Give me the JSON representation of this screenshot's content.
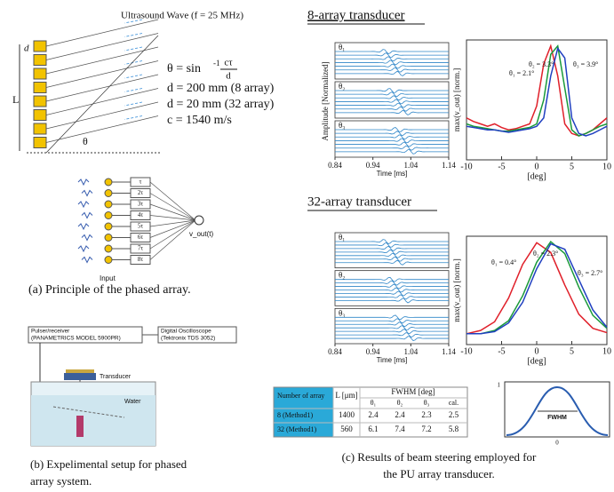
{
  "panel_a": {
    "title": "Ultrasound Wave (f = 25 MHz)",
    "symbol_L": "L",
    "symbol_d": "d",
    "symbol_theta": "θ",
    "equation": {
      "lhs": "θ = sin",
      "exp": "-1",
      "num": "cτ",
      "den": "d"
    },
    "params": [
      "d = 200 mm (8 array)",
      "d = 20 mm (32 array)",
      "c = 1540 m/s"
    ],
    "delays": [
      "τ",
      "2τ",
      "3τ",
      "4τ",
      "5τ",
      "6τ",
      "7τ",
      "8τ"
    ],
    "output": "v_out(t)",
    "input": "Input",
    "caption": "(a) Principle of the phased array."
  },
  "panel_b": {
    "pulser": [
      "Pulser/receiver",
      "(PANAMETRICS MODEL 5900PR)"
    ],
    "scope": [
      "Digital Oscilloscope",
      "(Tektronix TDS 3052)"
    ],
    "transducer": "Transducer",
    "water": "Water",
    "caption": [
      "(b) Expelimental setup for phased",
      "array system."
    ]
  },
  "panel_c": {
    "title_8": "8-array transducer",
    "title_32": "32-array transducer",
    "table": {
      "header": [
        "Number of array",
        "L [μm]",
        "FWHM [deg]"
      ],
      "subheader": [
        "θ₁",
        "θ₂",
        "θ₃",
        "cal."
      ],
      "rows": [
        [
          "8 (Method1)",
          "1400",
          "2.4",
          "2.4",
          "2.3",
          "2.5"
        ],
        [
          "32 (Method1)",
          "560",
          "6.1",
          "7.4",
          "7.2",
          "5.8"
        ]
      ]
    },
    "inset": {
      "label": "FWHM",
      "y_top": "1",
      "x_mid": "0"
    },
    "caption": [
      "(c) Results of beam steering employed for",
      "the PU array transducer."
    ]
  },
  "chart_data": [
    {
      "type": "waveform",
      "ylabel": "Amplitude [Normalized]",
      "xlabel": "Time [ms]",
      "xlim": [
        0.84,
        1.14
      ],
      "xticks": [
        0.84,
        0.94,
        1.04,
        1.14
      ],
      "channels": [
        "θ₁",
        "θ₂",
        "θ₃"
      ]
    },
    {
      "type": "line",
      "ylabel": "max(v_out) [norm.]",
      "xlabel": "[deg]",
      "xlim": [
        -10,
        10
      ],
      "xticks": [
        -10,
        -5,
        0,
        5,
        10
      ],
      "ylim": [
        0,
        1
      ],
      "x": [
        -10,
        -9,
        -8,
        -7,
        -6,
        -5,
        -4,
        -3,
        -2,
        -1,
        0,
        1,
        2,
        3,
        4,
        5,
        6,
        7,
        8,
        9,
        10
      ],
      "series": [
        {
          "color": "#e0202a",
          "values": [
            0.35,
            0.32,
            0.3,
            0.28,
            0.3,
            0.27,
            0.25,
            0.26,
            0.28,
            0.3,
            0.45,
            0.8,
            0.95,
            0.7,
            0.3,
            0.22,
            0.2,
            0.22,
            0.25,
            0.3,
            0.35
          ]
        },
        {
          "color": "#1a9a3a",
          "values": [
            0.3,
            0.28,
            0.27,
            0.26,
            0.25,
            0.24,
            0.24,
            0.25,
            0.26,
            0.27,
            0.3,
            0.5,
            0.88,
            0.95,
            0.6,
            0.25,
            0.2,
            0.22,
            0.25,
            0.28,
            0.3
          ]
        },
        {
          "color": "#2040c0",
          "values": [
            0.28,
            0.27,
            0.26,
            0.25,
            0.25,
            0.24,
            0.23,
            0.24,
            0.25,
            0.26,
            0.28,
            0.35,
            0.7,
            0.93,
            0.85,
            0.35,
            0.22,
            0.2,
            0.22,
            0.25,
            0.28
          ]
        }
      ],
      "annotations": [
        "θ₂ = 3.3°",
        "θ₃ = 3.9°",
        "θ₁ = 2.1°"
      ]
    },
    {
      "type": "waveform",
      "xlabel": "Time [ms]",
      "xlim": [
        0.84,
        1.14
      ],
      "xticks": [
        0.84,
        0.94,
        1.04,
        1.14
      ],
      "channels": [
        "θ₁",
        "θ₂",
        "θ₃"
      ]
    },
    {
      "type": "line",
      "ylabel": "max(v_out) [norm.]",
      "xlabel": "[deg]",
      "xlim": [
        -10,
        10
      ],
      "xticks": [
        -10,
        -5,
        0,
        5,
        10
      ],
      "ylim": [
        0,
        1
      ],
      "x": [
        -10,
        -8,
        -6,
        -4,
        -2,
        0,
        2,
        4,
        6,
        8,
        10
      ],
      "series": [
        {
          "color": "#e0202a",
          "values": [
            0.1,
            0.13,
            0.21,
            0.43,
            0.74,
            0.94,
            0.85,
            0.55,
            0.28,
            0.15,
            0.11
          ]
        },
        {
          "color": "#1a9a3a",
          "values": [
            0.1,
            0.1,
            0.13,
            0.22,
            0.45,
            0.76,
            0.95,
            0.84,
            0.53,
            0.27,
            0.15
          ]
        },
        {
          "color": "#2040c0",
          "values": [
            0.1,
            0.1,
            0.12,
            0.2,
            0.39,
            0.7,
            0.93,
            0.88,
            0.6,
            0.32,
            0.16
          ]
        }
      ],
      "annotations": [
        "θ₁ = 0.4°",
        "θ₂ = 2.3°",
        "θ₃ = 2.7°"
      ]
    }
  ]
}
